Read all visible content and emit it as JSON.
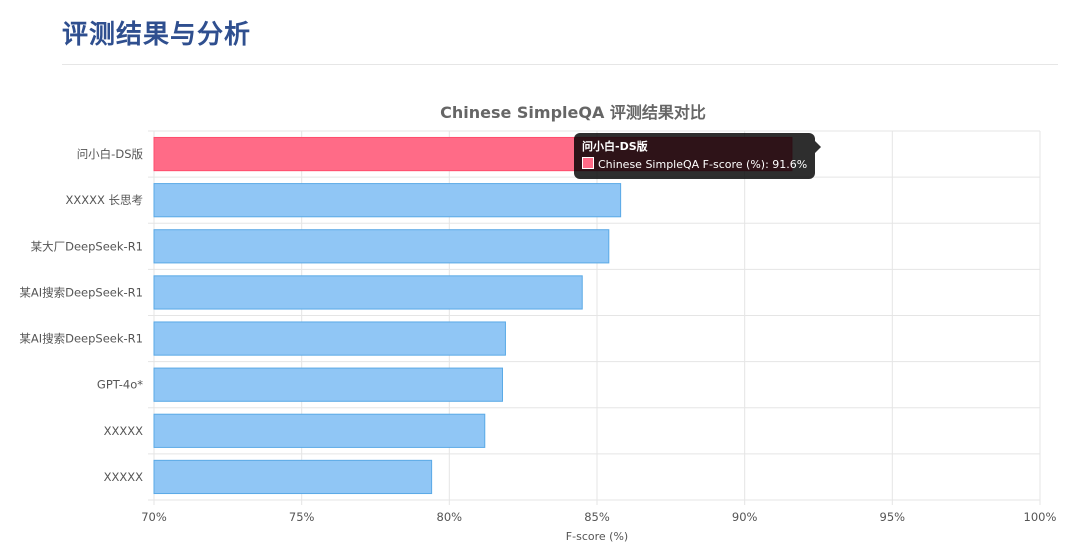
{
  "page": {
    "section_title": "评测结果与分析"
  },
  "chart_data": {
    "type": "bar",
    "orientation": "horizontal",
    "title": "Chinese SimpleQA 评测结果对比",
    "xlabel": "F-score (%)",
    "ylabel": "",
    "xlim": [
      70,
      100
    ],
    "x_ticks": [
      "70%",
      "75%",
      "80%",
      "85%",
      "90%",
      "95%",
      "100%"
    ],
    "x_tick_values": [
      70,
      75,
      80,
      85,
      90,
      95,
      100
    ],
    "grid": true,
    "categories": [
      "问小白-DS版",
      "XXXXX 长思考",
      "某大厂DeepSeek-R1",
      "某AI搜索DeepSeek-R1",
      "某AI搜索DeepSeek-R1",
      "GPT-4o*",
      "XXXXX",
      "XXXXX"
    ],
    "series": [
      {
        "name": "Chinese SimpleQA F-score (%)",
        "values": [
          91.6,
          85.8,
          85.4,
          84.5,
          81.9,
          81.8,
          81.2,
          79.4
        ]
      }
    ],
    "colors": {
      "highlight_fill": "#ff6b87",
      "highlight_stroke": "#ff4d6d",
      "bar_fill": "#90c6f5",
      "bar_stroke": "#5aa9e6",
      "grid": "#e5e5e5"
    }
  },
  "tooltip": {
    "title": "问小白-DS版",
    "line": "Chinese SimpleQA F-score (%): 91.6%"
  }
}
